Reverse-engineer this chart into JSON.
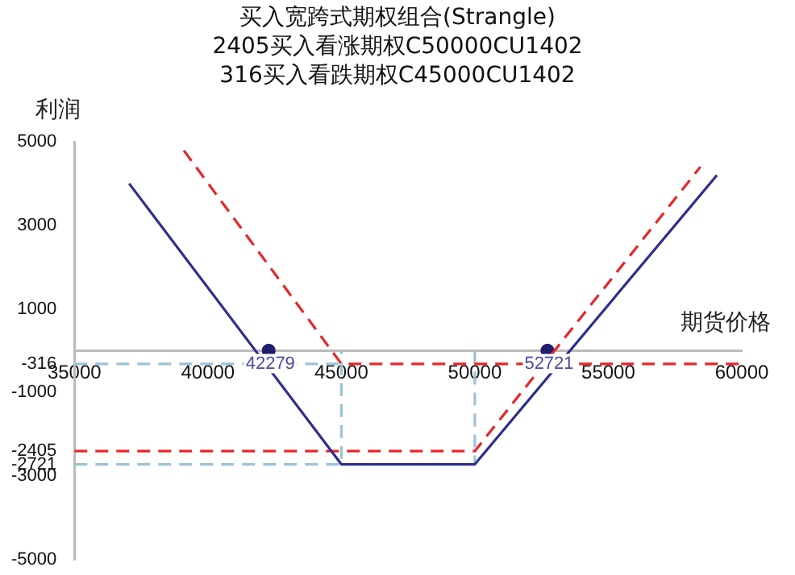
{
  "chart_data": {
    "type": "line",
    "title": "买入宽跨式期权组合(Strangle)\n2405买入看涨期权C50000CU1402\n316买入看跌期权C45000CU1402",
    "xlabel": "期货价格",
    "ylabel": "利润",
    "xlim": [
      35000,
      60000
    ],
    "xticks": [
      35000,
      40000,
      45000,
      50000,
      55000,
      60000
    ],
    "ylim": [
      -5000,
      5000
    ],
    "yticks": [
      5000,
      3000,
      1000,
      -316,
      -1000,
      -2405,
      -2721,
      -3000,
      -5000
    ],
    "grid": false,
    "legend": false,
    "series": [
      {
        "color": "#2e2e8f",
        "line_style": "solid",
        "marker": "none",
        "x": [
          37050,
          45000,
          50000,
          59070
        ],
        "values": [
          4000,
          -2721,
          -2721,
          4200
        ]
      },
      {
        "color": "#e8262a",
        "line_style": "dashed",
        "marker": "none",
        "x": [
          39100,
          45000,
          60000
        ],
        "values": [
          4790,
          -316,
          -316
        ]
      },
      {
        "color": "#e8262a",
        "line_style": "dashed",
        "marker": "none",
        "x": [
          35000,
          50000,
          58450
        ],
        "values": [
          -2405,
          -2405,
          4400
        ]
      },
      {
        "color": "#9cc3d5",
        "line_style": "dashed",
        "marker": "none",
        "x": [
          35000,
          45000,
          45000
        ],
        "values": [
          -2721,
          -2721,
          0
        ]
      },
      {
        "color": "#9cc3d5",
        "line_style": "dashed",
        "marker": "none",
        "x": [
          35000,
          45000
        ],
        "values": [
          -316,
          -316
        ]
      },
      {
        "color": "#9cc3d5",
        "line_style": "dashed",
        "marker": "none",
        "x": [
          50000,
          50000
        ],
        "values": [
          0,
          -2721
        ]
      },
      {
        "type": "scatter",
        "color": "#1f1f6e",
        "marker": "circle",
        "x": [
          42279,
          52721
        ],
        "values": [
          0,
          0
        ]
      }
    ],
    "annotations": [
      {
        "text": "42279",
        "x": 42279,
        "y": 0
      },
      {
        "text": "52721",
        "x": 52721,
        "y": 0
      }
    ]
  }
}
